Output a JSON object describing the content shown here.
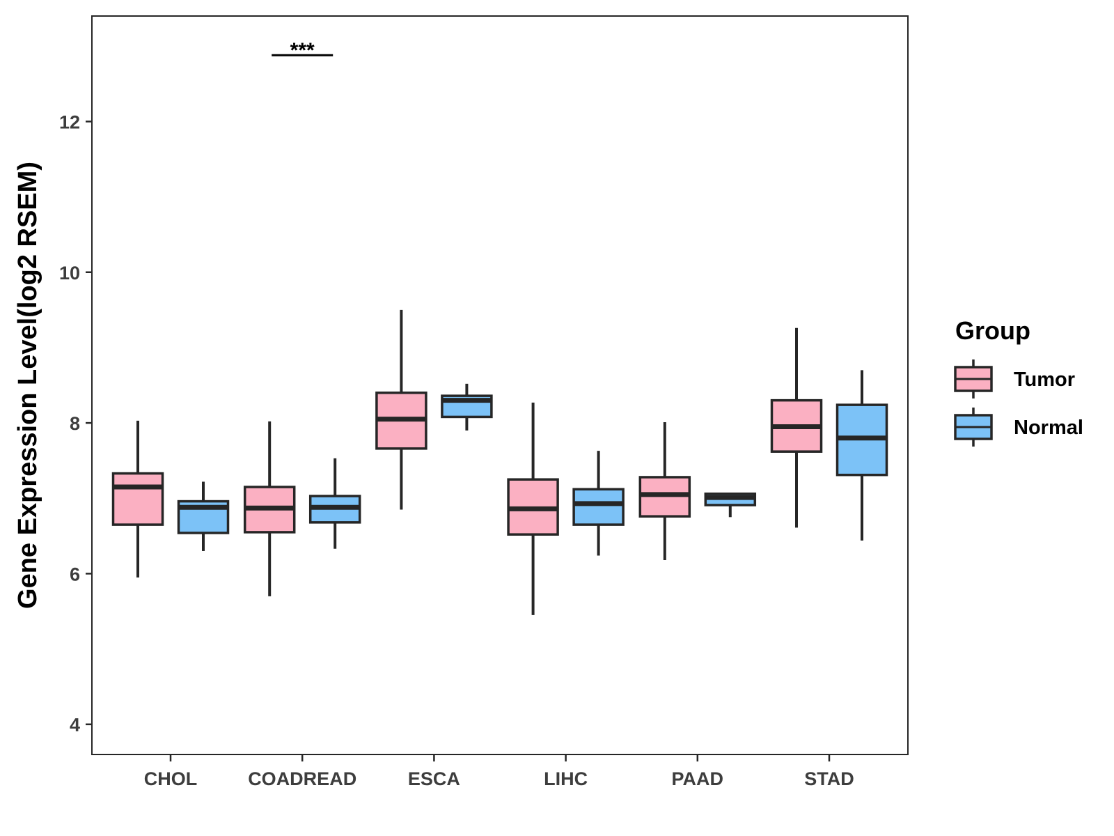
{
  "chart_data": {
    "type": "boxplot",
    "title": "",
    "xlabel": "",
    "ylabel": "Gene Expression Level(log2 RSEM)",
    "ylim": [
      3.6,
      13.4
    ],
    "yticks": [
      4,
      6,
      8,
      10,
      12
    ],
    "grid": false,
    "categories": [
      "CHOL",
      "COADREAD",
      "ESCA",
      "LIHC",
      "PAAD",
      "STAD"
    ],
    "legend": {
      "title": "Group",
      "position": "right",
      "entries": [
        "Tumor",
        "Normal"
      ]
    },
    "colors": {
      "Tumor": "#fbb0c2",
      "Normal": "#7cc2f7",
      "line": "#262626"
    },
    "series": [
      {
        "name": "Tumor",
        "boxes": [
          {
            "min": 5.95,
            "q1": 6.65,
            "median": 7.15,
            "q3": 7.33,
            "max": 8.03
          },
          {
            "min": 5.7,
            "q1": 6.55,
            "median": 6.87,
            "q3": 7.15,
            "max": 8.02
          },
          {
            "min": 6.85,
            "q1": 7.66,
            "median": 8.05,
            "q3": 8.4,
            "max": 9.5
          },
          {
            "min": 5.45,
            "q1": 6.52,
            "median": 6.86,
            "q3": 7.25,
            "max": 8.27
          },
          {
            "min": 6.18,
            "q1": 6.76,
            "median": 7.05,
            "q3": 7.28,
            "max": 8.01
          },
          {
            "min": 6.61,
            "q1": 7.62,
            "median": 7.95,
            "q3": 8.3,
            "max": 9.26
          }
        ]
      },
      {
        "name": "Normal",
        "boxes": [
          {
            "min": 6.3,
            "q1": 6.54,
            "median": 6.88,
            "q3": 6.96,
            "max": 7.22
          },
          {
            "min": 6.33,
            "q1": 6.68,
            "median": 6.88,
            "q3": 7.03,
            "max": 7.53
          },
          {
            "min": 7.9,
            "q1": 8.08,
            "median": 8.3,
            "q3": 8.36,
            "max": 8.52
          },
          {
            "min": 6.24,
            "q1": 6.65,
            "median": 6.93,
            "q3": 7.12,
            "max": 7.63
          },
          {
            "min": 6.75,
            "q1": 6.91,
            "median": 7.01,
            "q3": 7.06,
            "max": 7.06
          },
          {
            "min": 6.44,
            "q1": 7.31,
            "median": 7.8,
            "q3": 8.24,
            "max": 8.7
          }
        ]
      }
    ],
    "annotations": [
      {
        "text": "***",
        "category": "COADREAD",
        "y": 12.88
      }
    ]
  }
}
